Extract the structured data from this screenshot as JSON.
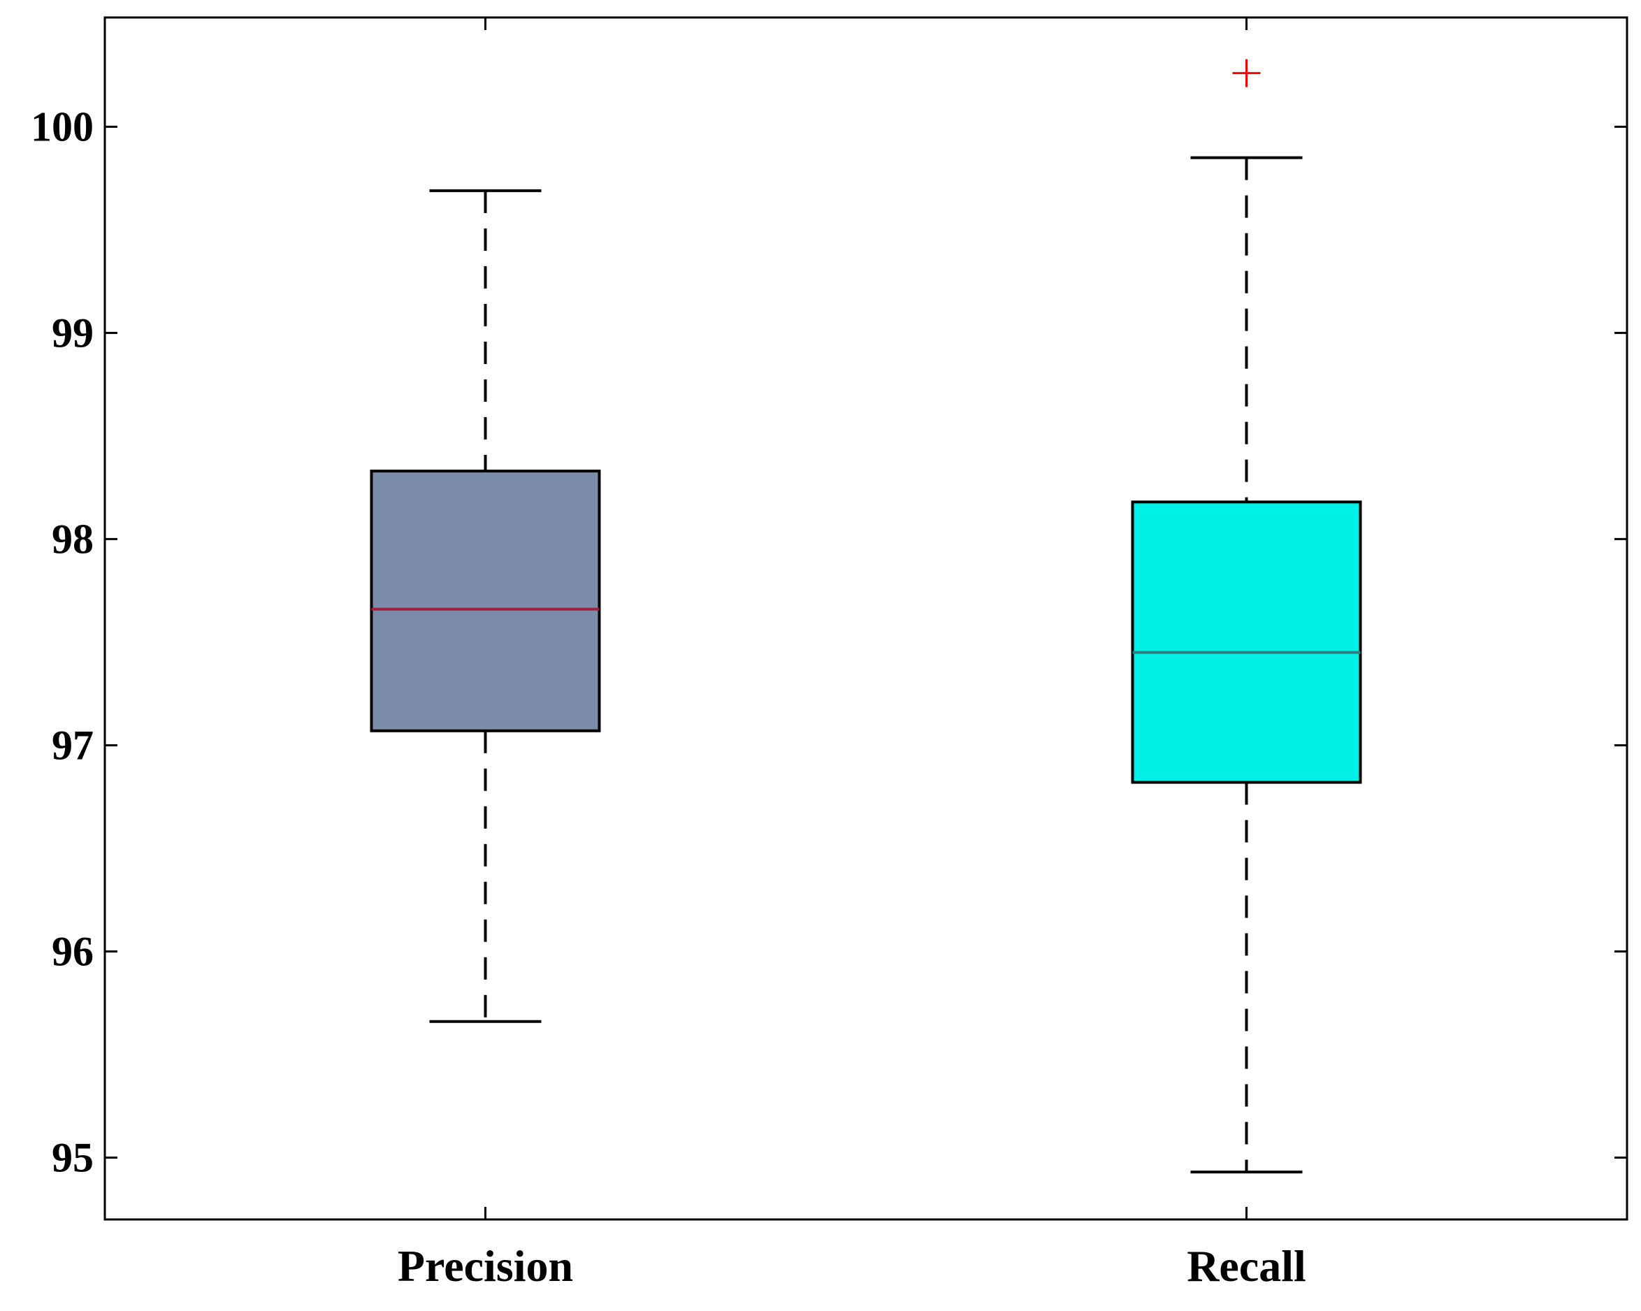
{
  "chart_data": {
    "type": "box",
    "title": "",
    "xlabel": "",
    "ylabel": "",
    "categories": [
      "Precision",
      "Recall"
    ],
    "ylim": [
      94.7,
      100.53
    ],
    "yticks": [
      95,
      96,
      97,
      98,
      99,
      100
    ],
    "ytick_labels": [
      "95",
      "96",
      "97",
      "98",
      "99",
      "100"
    ],
    "grid": false,
    "legend": "none",
    "boxes": [
      {
        "category": "Precision",
        "whisker_low": 95.66,
        "q1": 97.07,
        "median": 97.66,
        "q3": 98.33,
        "whisker_high": 99.69,
        "outliers": [],
        "fill_color": "#7b8ca8",
        "median_color": "#a02040"
      },
      {
        "category": "Recall",
        "whisker_low": 94.93,
        "q1": 96.82,
        "median": 97.45,
        "q3": 98.18,
        "whisker_high": 99.85,
        "outliers": [
          100.26
        ],
        "fill_color": "#00f0e8",
        "median_color": "#2a8080"
      }
    ],
    "outlier_color": "#ff0000",
    "outlier_marker": "+"
  }
}
